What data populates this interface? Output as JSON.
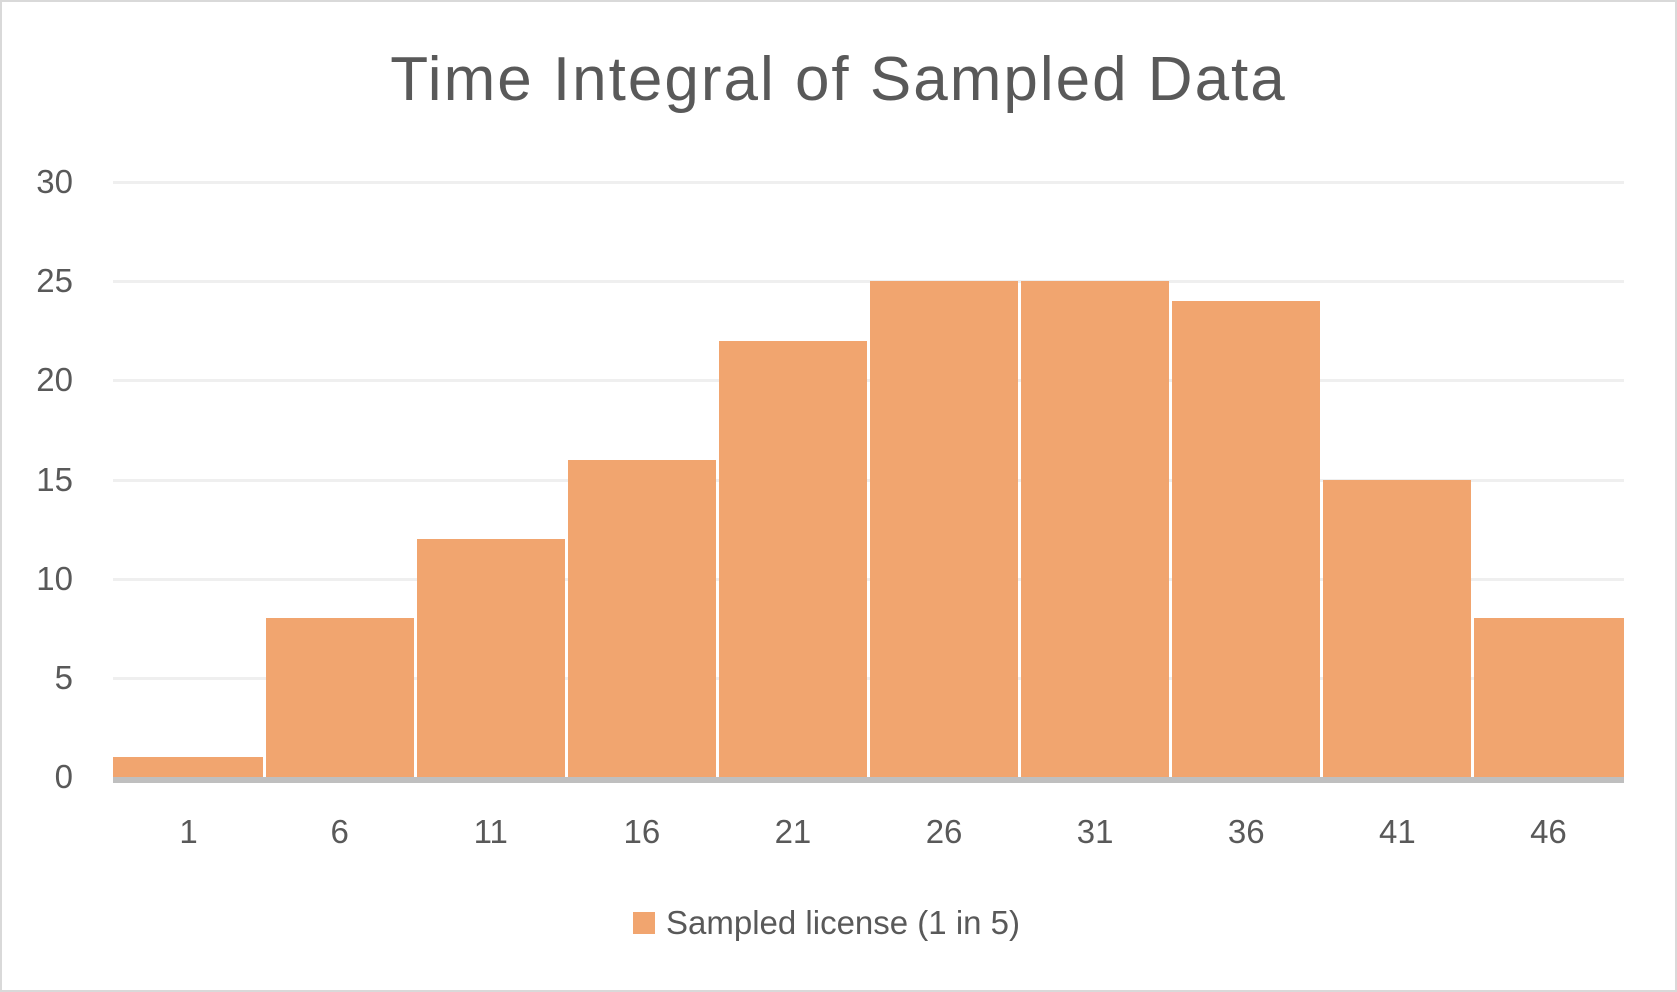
{
  "chart_data": {
    "type": "bar",
    "title": "Time Integral of Sampled Data",
    "categories": [
      "1",
      "6",
      "11",
      "16",
      "21",
      "26",
      "31",
      "36",
      "41",
      "46"
    ],
    "series": [
      {
        "name": "Sampled license (1 in 5)",
        "color": "#F1A56F",
        "values": [
          1,
          8,
          12,
          16,
          22,
          25,
          25,
          24,
          15,
          8
        ]
      }
    ],
    "xlabel": "",
    "ylabel": "",
    "ylim": [
      0,
      30
    ],
    "yticks": [
      "0",
      "5",
      "10",
      "15",
      "20",
      "25",
      "30"
    ],
    "grid": true,
    "legend_position": "bottom"
  },
  "colors": {
    "bar": "#F1A56F",
    "text": "#595959",
    "gridline": "#EFEFEF",
    "axis": "#BFBFBF",
    "border": "#D9D9D9"
  }
}
